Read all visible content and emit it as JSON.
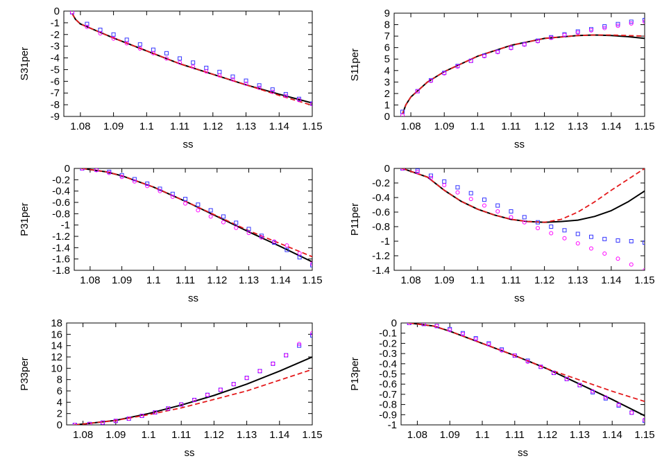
{
  "chart_data": [
    {
      "type": "line",
      "xlabel": "ss",
      "ylabel": "S31per",
      "xlim": [
        1.075,
        1.15
      ],
      "ylim": [
        -9,
        0
      ],
      "xticks": [
        "1.08",
        "1.09",
        "1.1",
        "1.11",
        "1.12",
        "1.13",
        "1.14",
        "1.15"
      ],
      "yticks": [
        "0",
        "-1",
        "-2",
        "-3",
        "-4",
        "-5",
        "-6",
        "-7",
        "-8",
        "-9"
      ],
      "series": [
        {
          "style": "line-solid",
          "color": "#000000",
          "x": [
            1.0775,
            1.0785,
            1.08,
            1.09,
            1.1,
            1.11,
            1.12,
            1.13,
            1.14,
            1.15
          ],
          "y": [
            -0.2,
            -0.7,
            -1.1,
            -2.3,
            -3.4,
            -4.5,
            -5.4,
            -6.3,
            -7.1,
            -7.85
          ]
        },
        {
          "style": "line-dashed",
          "color": "#e41a1c",
          "x": [
            1.0775,
            1.0785,
            1.08,
            1.09,
            1.1,
            1.11,
            1.12,
            1.13,
            1.14,
            1.15
          ],
          "y": [
            -0.2,
            -0.7,
            -1.1,
            -2.3,
            -3.4,
            -4.5,
            -5.4,
            -6.3,
            -7.2,
            -8.05
          ]
        },
        {
          "style": "marker-square",
          "color": "#3333ff",
          "x": [
            1.0775,
            1.082,
            1.086,
            1.09,
            1.094,
            1.098,
            1.102,
            1.106,
            1.11,
            1.114,
            1.118,
            1.122,
            1.126,
            1.13,
            1.134,
            1.138,
            1.142,
            1.146,
            1.15
          ],
          "y": [
            -0.1,
            -1.1,
            -1.6,
            -2.0,
            -2.45,
            -2.85,
            -3.3,
            -3.6,
            -4.05,
            -4.4,
            -4.85,
            -5.2,
            -5.6,
            -5.95,
            -6.35,
            -6.7,
            -7.1,
            -7.5,
            -7.9
          ]
        },
        {
          "style": "marker-circle",
          "color": "#ff00ff",
          "x": [
            1.0775,
            1.082,
            1.086,
            1.09,
            1.094,
            1.098,
            1.102,
            1.106,
            1.11,
            1.114,
            1.118,
            1.122,
            1.126,
            1.13,
            1.134,
            1.138,
            1.142,
            1.146,
            1.15
          ],
          "y": [
            -0.1,
            -1.35,
            -1.9,
            -2.35,
            -2.75,
            -3.2,
            -3.6,
            -4.05,
            -4.4,
            -4.75,
            -5.15,
            -5.5,
            -5.85,
            -6.2,
            -6.55,
            -6.9,
            -7.25,
            -7.6,
            -7.95
          ]
        }
      ]
    },
    {
      "type": "line",
      "xlabel": "ss",
      "ylabel": "S11per",
      "xlim": [
        1.075,
        1.15
      ],
      "ylim": [
        0,
        9
      ],
      "xticks": [
        "1.08",
        "1.09",
        "1.1",
        "1.11",
        "1.12",
        "1.13",
        "1.14",
        "1.15"
      ],
      "yticks": [
        "0",
        "1",
        "2",
        "3",
        "4",
        "5",
        "6",
        "7",
        "8",
        "9"
      ],
      "series": [
        {
          "style": "line-solid",
          "color": "#000000",
          "x": [
            1.0775,
            1.0785,
            1.08,
            1.085,
            1.09,
            1.1,
            1.11,
            1.12,
            1.13,
            1.135,
            1.14,
            1.145,
            1.15
          ],
          "y": [
            0.2,
            1.0,
            1.7,
            3.0,
            3.9,
            5.25,
            6.2,
            6.8,
            7.05,
            7.1,
            7.05,
            6.95,
            6.8
          ]
        },
        {
          "style": "line-dashed",
          "color": "#e41a1c",
          "x": [
            1.0775,
            1.0785,
            1.08,
            1.085,
            1.09,
            1.1,
            1.11,
            1.12,
            1.13,
            1.135,
            1.14,
            1.145,
            1.15
          ],
          "y": [
            0.2,
            1.0,
            1.7,
            3.0,
            3.9,
            5.25,
            6.2,
            6.8,
            7.05,
            7.1,
            7.1,
            7.05,
            7.0
          ]
        },
        {
          "style": "marker-square",
          "color": "#3333ff",
          "x": [
            1.0775,
            1.082,
            1.086,
            1.09,
            1.094,
            1.098,
            1.102,
            1.106,
            1.11,
            1.114,
            1.118,
            1.122,
            1.126,
            1.13,
            1.134,
            1.138,
            1.142,
            1.146,
            1.15
          ],
          "y": [
            0.4,
            2.2,
            3.15,
            3.8,
            4.4,
            4.85,
            5.3,
            5.65,
            6.0,
            6.3,
            6.6,
            6.9,
            7.15,
            7.4,
            7.6,
            7.85,
            8.05,
            8.25,
            8.4
          ]
        },
        {
          "style": "marker-circle",
          "color": "#ff00ff",
          "x": [
            1.0775,
            1.082,
            1.086,
            1.09,
            1.094,
            1.098,
            1.102,
            1.106,
            1.11,
            1.114,
            1.118,
            1.122,
            1.126,
            1.13,
            1.134,
            1.138,
            1.142,
            1.146,
            1.15
          ],
          "y": [
            0.1,
            2.2,
            3.1,
            3.75,
            4.35,
            4.85,
            5.25,
            5.6,
            5.95,
            6.25,
            6.55,
            6.85,
            7.1,
            7.3,
            7.5,
            7.7,
            7.9,
            8.1,
            8.25
          ]
        }
      ]
    },
    {
      "type": "line",
      "xlabel": "ss",
      "ylabel": "P31per",
      "xlim": [
        1.075,
        1.15
      ],
      "ylim": [
        -1.8,
        0
      ],
      "xticks": [
        "1.08",
        "1.09",
        "1.1",
        "1.11",
        "1.12",
        "1.13",
        "1.14",
        "1.15"
      ],
      "yticks": [
        "0",
        "-0.2",
        "-0.4",
        "-0.6",
        "-0.8",
        "-1",
        "-1.2",
        "-1.4",
        "-1.6",
        "-1.8"
      ],
      "series": [
        {
          "style": "line-solid",
          "color": "#000000",
          "x": [
            1.0775,
            1.085,
            1.09,
            1.1,
            1.11,
            1.12,
            1.13,
            1.14,
            1.15
          ],
          "y": [
            0.0,
            -0.06,
            -0.13,
            -0.33,
            -0.58,
            -0.85,
            -1.12,
            -1.38,
            -1.65
          ]
        },
        {
          "style": "line-dashed",
          "color": "#e41a1c",
          "x": [
            1.0775,
            1.085,
            1.09,
            1.1,
            1.11,
            1.12,
            1.13,
            1.14,
            1.15
          ],
          "y": [
            0.0,
            -0.06,
            -0.13,
            -0.33,
            -0.58,
            -0.84,
            -1.1,
            -1.33,
            -1.56
          ]
        },
        {
          "style": "marker-square",
          "color": "#3333ff",
          "x": [
            1.0775,
            1.082,
            1.086,
            1.09,
            1.094,
            1.098,
            1.102,
            1.106,
            1.11,
            1.114,
            1.118,
            1.122,
            1.126,
            1.13,
            1.134,
            1.138,
            1.142,
            1.146,
            1.15
          ],
          "y": [
            0.0,
            -0.02,
            -0.06,
            -0.12,
            -0.19,
            -0.27,
            -0.36,
            -0.45,
            -0.54,
            -0.64,
            -0.74,
            -0.85,
            -0.96,
            -1.07,
            -1.19,
            -1.31,
            -1.44,
            -1.57,
            -1.71
          ]
        },
        {
          "style": "marker-circle",
          "color": "#ff00ff",
          "x": [
            1.0775,
            1.082,
            1.086,
            1.09,
            1.094,
            1.098,
            1.102,
            1.106,
            1.11,
            1.114,
            1.118,
            1.122,
            1.126,
            1.13,
            1.134,
            1.138,
            1.142,
            1.146,
            1.15
          ],
          "y": [
            0.0,
            -0.03,
            -0.08,
            -0.15,
            -0.23,
            -0.31,
            -0.4,
            -0.5,
            -0.62,
            -0.74,
            -0.85,
            -0.95,
            -1.05,
            -1.14,
            -1.22,
            -1.29,
            -1.36,
            -1.5,
            -1.68
          ]
        }
      ]
    },
    {
      "type": "line",
      "xlabel": "ss",
      "ylabel": "P11per",
      "xlim": [
        1.075,
        1.15
      ],
      "ylim": [
        -1.4,
        0
      ],
      "xticks": [
        "1.08",
        "1.09",
        "1.1",
        "1.11",
        "1.12",
        "1.13",
        "1.14",
        "1.15"
      ],
      "yticks": [
        "0",
        "-0.2",
        "-0.4",
        "-0.6",
        "-0.8",
        "-1",
        "-1.2",
        "-1.4"
      ],
      "series": [
        {
          "style": "line-solid",
          "color": "#000000",
          "x": [
            1.0775,
            1.085,
            1.09,
            1.095,
            1.1,
            1.105,
            1.11,
            1.115,
            1.12,
            1.125,
            1.13,
            1.135,
            1.14,
            1.145,
            1.15
          ],
          "y": [
            0.0,
            -0.12,
            -0.3,
            -0.45,
            -0.56,
            -0.64,
            -0.7,
            -0.73,
            -0.74,
            -0.73,
            -0.71,
            -0.66,
            -0.58,
            -0.46,
            -0.31
          ]
        },
        {
          "style": "line-dashed",
          "color": "#e41a1c",
          "x": [
            1.0775,
            1.085,
            1.09,
            1.095,
            1.1,
            1.105,
            1.11,
            1.115,
            1.12,
            1.125,
            1.13,
            1.135,
            1.14,
            1.145,
            1.15
          ],
          "y": [
            0.0,
            -0.12,
            -0.3,
            -0.45,
            -0.56,
            -0.64,
            -0.7,
            -0.73,
            -0.74,
            -0.7,
            -0.6,
            -0.46,
            -0.3,
            -0.15,
            0.0
          ]
        },
        {
          "style": "marker-square",
          "color": "#3333ff",
          "x": [
            1.0775,
            1.082,
            1.086,
            1.09,
            1.094,
            1.098,
            1.102,
            1.106,
            1.11,
            1.114,
            1.118,
            1.122,
            1.126,
            1.13,
            1.134,
            1.138,
            1.142,
            1.146,
            1.15
          ],
          "y": [
            0.0,
            -0.03,
            -0.1,
            -0.18,
            -0.26,
            -0.34,
            -0.43,
            -0.51,
            -0.59,
            -0.67,
            -0.74,
            -0.8,
            -0.85,
            -0.9,
            -0.94,
            -0.97,
            -0.99,
            -1.0,
            -1.02
          ]
        },
        {
          "style": "marker-circle",
          "color": "#ff00ff",
          "x": [
            1.0775,
            1.082,
            1.086,
            1.09,
            1.094,
            1.098,
            1.102,
            1.106,
            1.11,
            1.114,
            1.118,
            1.122,
            1.126,
            1.13,
            1.134,
            1.138,
            1.142,
            1.146,
            1.15
          ],
          "y": [
            0.0,
            -0.05,
            -0.13,
            -0.23,
            -0.33,
            -0.42,
            -0.51,
            -0.59,
            -0.67,
            -0.74,
            -0.82,
            -0.89,
            -0.96,
            -1.03,
            -1.1,
            -1.17,
            -1.24,
            -1.32,
            -1.4
          ]
        }
      ]
    },
    {
      "type": "line",
      "xlabel": "ss",
      "ylabel": "P33per",
      "xlim": [
        1.075,
        1.15
      ],
      "ylim": [
        0,
        18
      ],
      "xticks": [
        "1.08",
        "1.09",
        "1.1",
        "1.11",
        "1.12",
        "1.13",
        "1.14",
        "1.15"
      ],
      "yticks": [
        "0",
        "2",
        "4",
        "6",
        "8",
        "10",
        "12",
        "14",
        "16",
        "18"
      ],
      "series": [
        {
          "style": "line-solid",
          "color": "#000000",
          "x": [
            1.0775,
            1.08,
            1.09,
            1.1,
            1.11,
            1.12,
            1.13,
            1.14,
            1.15
          ],
          "y": [
            0.0,
            0.15,
            0.8,
            2.0,
            3.5,
            5.2,
            7.2,
            9.5,
            12.0
          ]
        },
        {
          "style": "line-dashed",
          "color": "#e41a1c",
          "x": [
            1.0775,
            1.08,
            1.09,
            1.1,
            1.11,
            1.12,
            1.13,
            1.14,
            1.15
          ],
          "y": [
            0.0,
            0.15,
            0.8,
            1.8,
            3.0,
            4.5,
            6.0,
            7.9,
            9.8
          ]
        },
        {
          "style": "marker-square",
          "color": "#3333ff",
          "x": [
            1.0775,
            1.082,
            1.086,
            1.09,
            1.094,
            1.098,
            1.102,
            1.106,
            1.11,
            1.114,
            1.118,
            1.122,
            1.126,
            1.13,
            1.134,
            1.138,
            1.142,
            1.146,
            1.15
          ],
          "y": [
            0.0,
            0.15,
            0.4,
            0.7,
            1.1,
            1.6,
            2.2,
            2.9,
            3.6,
            4.4,
            5.3,
            6.2,
            7.2,
            8.3,
            9.5,
            10.8,
            12.3,
            14.0,
            15.8
          ]
        },
        {
          "style": "marker-circle",
          "color": "#ff00ff",
          "x": [
            1.0775,
            1.082,
            1.086,
            1.09,
            1.094,
            1.098,
            1.102,
            1.106,
            1.11,
            1.114,
            1.118,
            1.122,
            1.126,
            1.13,
            1.134,
            1.138,
            1.142,
            1.146,
            1.15
          ],
          "y": [
            0.0,
            0.15,
            0.4,
            0.7,
            1.1,
            1.6,
            2.2,
            2.9,
            3.6,
            4.4,
            5.3,
            6.2,
            7.2,
            8.3,
            9.5,
            10.8,
            12.3,
            14.3,
            16.2
          ]
        }
      ]
    },
    {
      "type": "line",
      "xlabel": "ss",
      "ylabel": "P13per",
      "xlim": [
        1.075,
        1.15
      ],
      "ylim": [
        -1,
        0
      ],
      "xticks": [
        "1.08",
        "1.09",
        "1.1",
        "1.11",
        "1.12",
        "1.13",
        "1.14",
        "1.15"
      ],
      "yticks": [
        "0",
        "-0.1",
        "-0.2",
        "-0.3",
        "-0.4",
        "-0.5",
        "-0.6",
        "-0.7",
        "-0.8",
        "-0.9",
        "-1"
      ],
      "series": [
        {
          "style": "line-solid",
          "color": "#000000",
          "x": [
            1.0775,
            1.085,
            1.09,
            1.1,
            1.11,
            1.12,
            1.13,
            1.14,
            1.15
          ],
          "y": [
            0.0,
            -0.03,
            -0.08,
            -0.2,
            -0.32,
            -0.45,
            -0.6,
            -0.75,
            -0.91
          ]
        },
        {
          "style": "line-dashed",
          "color": "#e41a1c",
          "x": [
            1.0775,
            1.085,
            1.09,
            1.1,
            1.11,
            1.12,
            1.13,
            1.14,
            1.15
          ],
          "y": [
            0.0,
            -0.03,
            -0.08,
            -0.2,
            -0.32,
            -0.45,
            -0.56,
            -0.67,
            -0.77
          ]
        },
        {
          "style": "marker-square",
          "color": "#3333ff",
          "x": [
            1.0775,
            1.082,
            1.086,
            1.09,
            1.094,
            1.098,
            1.102,
            1.106,
            1.11,
            1.114,
            1.118,
            1.122,
            1.126,
            1.13,
            1.134,
            1.138,
            1.142,
            1.146,
            1.15
          ],
          "y": [
            0.0,
            -0.01,
            -0.03,
            -0.06,
            -0.1,
            -0.15,
            -0.2,
            -0.26,
            -0.32,
            -0.37,
            -0.43,
            -0.49,
            -0.55,
            -0.61,
            -0.68,
            -0.74,
            -0.81,
            -0.88,
            -0.96
          ]
        },
        {
          "style": "marker-circle",
          "color": "#ff00ff",
          "x": [
            1.0775,
            1.082,
            1.086,
            1.09,
            1.094,
            1.098,
            1.102,
            1.106,
            1.11,
            1.114,
            1.118,
            1.122,
            1.126,
            1.13,
            1.134,
            1.138,
            1.142,
            1.146,
            1.15
          ],
          "y": [
            0.0,
            -0.01,
            -0.03,
            -0.07,
            -0.11,
            -0.16,
            -0.21,
            -0.27,
            -0.32,
            -0.38,
            -0.43,
            -0.49,
            -0.55,
            -0.61,
            -0.67,
            -0.73,
            -0.8,
            -0.88,
            -0.95
          ]
        }
      ]
    }
  ]
}
